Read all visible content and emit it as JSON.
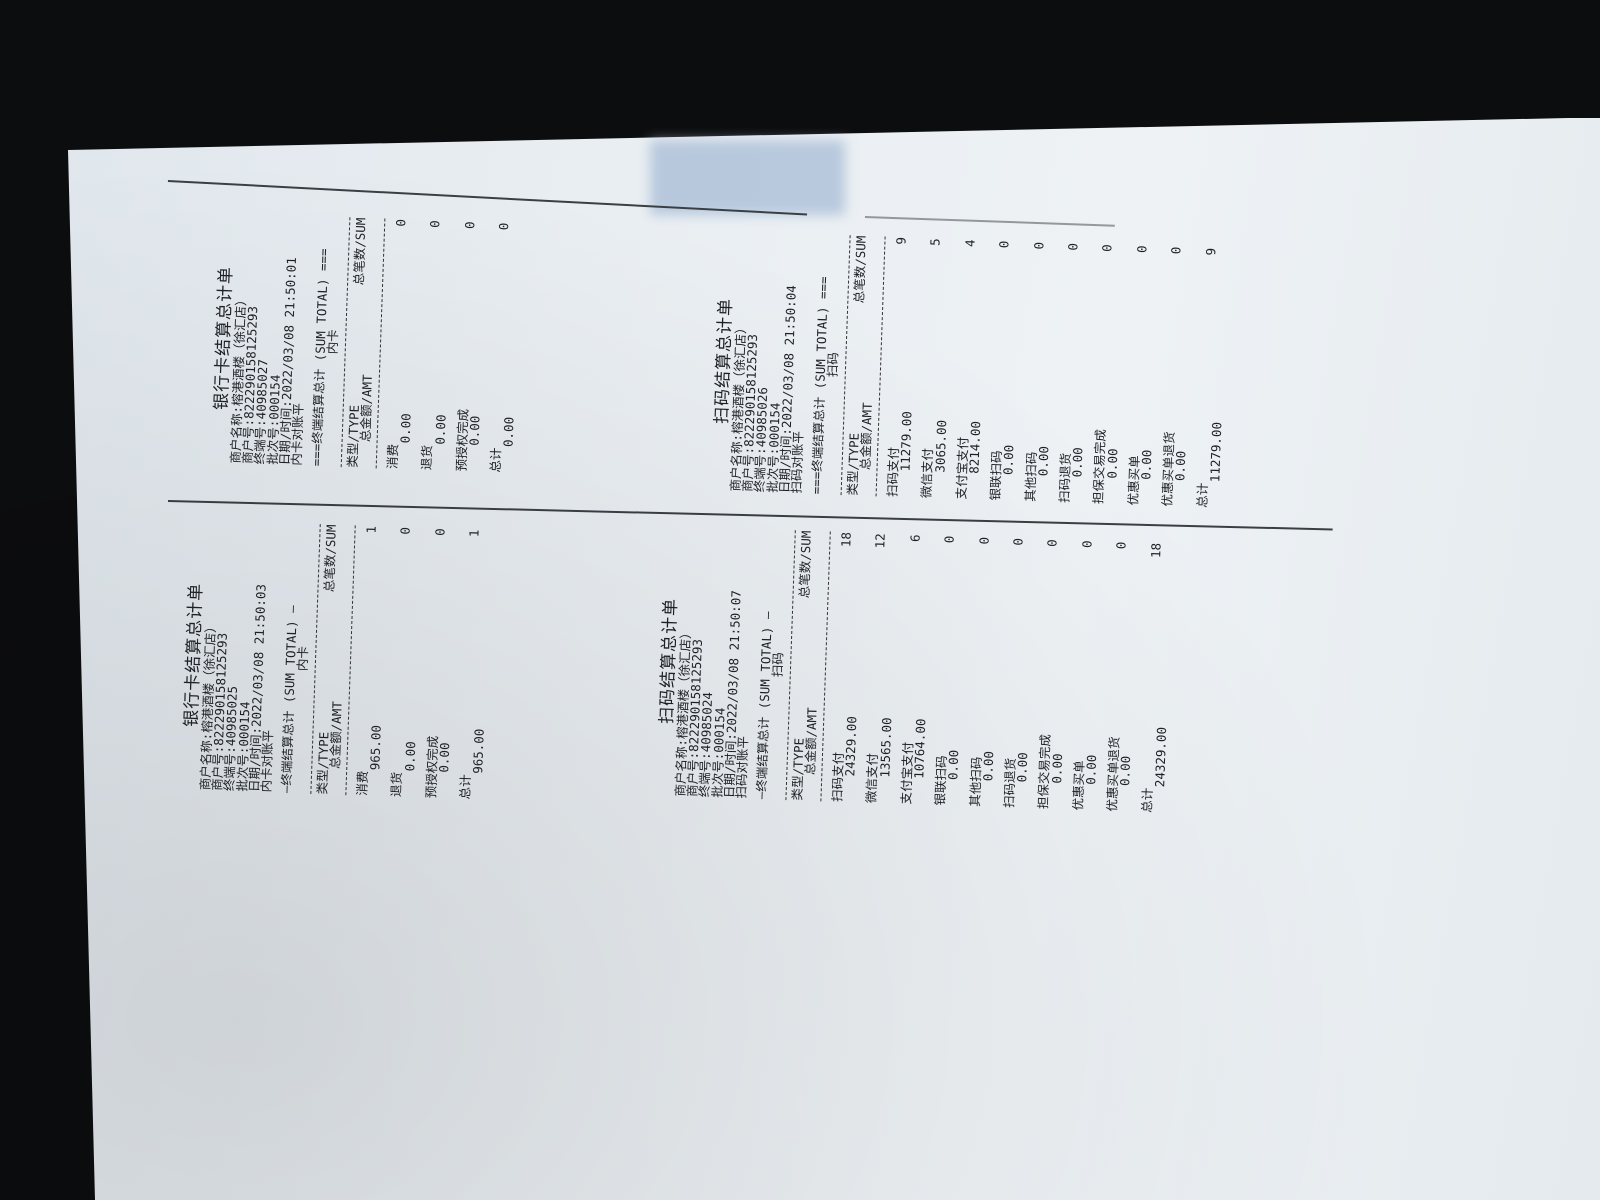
{
  "receipts": [
    {
      "title": "银行卡结算总计单",
      "merchant_name": "商户名称:榕港酒楼（徐汇店）",
      "merchant_no": "商户号:822290158125293",
      "terminal_no": "终端号:40985027",
      "batch_no": "批次号:000154",
      "datetime": "日期/时间:2022/03/08 21:50:01",
      "reconcile": "内卡对账平",
      "section_header": "===终端结算总计 (SUM TOTAL) ===",
      "section_sub": "内卡",
      "col_type": "类型/TYPE",
      "col_amt": "总金额/AMT",
      "col_sum": "总笔数/SUM",
      "items": [
        {
          "label": "消费",
          "amount": "0.00",
          "count": "0"
        },
        {
          "label": "退货",
          "amount": "0.00",
          "count": "0"
        },
        {
          "label": "预授权完成",
          "amount": "0.00",
          "count": "0"
        },
        {
          "label": "总计",
          "amount": "0.00",
          "count": "0"
        }
      ]
    },
    {
      "title": "扫码结算总计单",
      "merchant_name": "商户名称:榕港酒楼（徐汇店）",
      "merchant_no": "商户号:822290158125293",
      "terminal_no": "终端号:40985026",
      "batch_no": "批次号:000154",
      "datetime": "日期/时间:2022/03/08 21:50:04",
      "reconcile": "扫码对账平",
      "section_header": "===终端结算总计 (SUM TOTAL) ===",
      "section_sub": "扫码",
      "col_type": "类型/TYPE",
      "col_amt": "总金额/AMT",
      "col_sum": "总笔数/SUM",
      "items": [
        {
          "label": "扫码支付",
          "amount": "11279.00",
          "count": "9"
        },
        {
          "label": "微信支付",
          "amount": "3065.00",
          "count": "5"
        },
        {
          "label": "支付宝支付",
          "amount": "8214.00",
          "count": "4"
        },
        {
          "label": "银联扫码",
          "amount": "0.00",
          "count": "0"
        },
        {
          "label": "其他扫码",
          "amount": "0.00",
          "count": "0"
        },
        {
          "label": "扫码退货",
          "amount": "0.00",
          "count": "0"
        },
        {
          "label": "担保交易完成",
          "amount": "0.00",
          "count": "0"
        },
        {
          "label": "优惠买单",
          "amount": "0.00",
          "count": "0"
        },
        {
          "label": "优惠买单退货",
          "amount": "0.00",
          "count": "0"
        },
        {
          "label": "总计",
          "amount": "11279.00",
          "count": "9"
        }
      ]
    },
    {
      "title": "银行卡结算总计单",
      "merchant_name": "商户名称:榕港酒楼（徐汇店）",
      "merchant_no": "商户号:822290158125293",
      "terminal_no": "终端号:40985025",
      "batch_no": "批次号:000154",
      "datetime": "日期/时间:2022/03/08 21:50:03",
      "reconcile": "内卡对账平",
      "section_header": "—终端结算总计 (SUM TOTAL) —",
      "section_sub": "内卡",
      "col_type": "类型/TYPE",
      "col_amt": "总金额/AMT",
      "col_sum": "总笔数/SUM",
      "items": [
        {
          "label": "消费",
          "amount": "965.00",
          "count": "1"
        },
        {
          "label": "退货",
          "amount": "0.00",
          "count": "0"
        },
        {
          "label": "预授权完成",
          "amount": "0.00",
          "count": "0"
        },
        {
          "label": "总计",
          "amount": "965.00",
          "count": "1"
        }
      ]
    },
    {
      "title": "扫码结算总计单",
      "merchant_name": "商户名称:榕港酒楼（徐汇店）",
      "merchant_no": "商户号:822290158125293",
      "terminal_no": "终端号:40985024",
      "batch_no": "批次号:000154",
      "datetime": "日期/时间:2022/03/08 21:50:07",
      "reconcile": "扫码对账平",
      "section_header": "—终端结算总计 (SUM TOTAL) —",
      "section_sub": "扫码",
      "col_type": "类型/TYPE",
      "col_amt": "总金额/AMT",
      "col_sum": "总笔数/SUM",
      "items": [
        {
          "label": "扫码支付",
          "amount": "24329.00",
          "count": "18"
        },
        {
          "label": "微信支付",
          "amount": "13565.00",
          "count": "12"
        },
        {
          "label": "支付宝支付",
          "amount": "10764.00",
          "count": "6"
        },
        {
          "label": "银联扫码",
          "amount": "0.00",
          "count": "0"
        },
        {
          "label": "其他扫码",
          "amount": "0.00",
          "count": "0"
        },
        {
          "label": "扫码退货",
          "amount": "0.00",
          "count": "0"
        },
        {
          "label": "担保交易完成",
          "amount": "0.00",
          "count": "0"
        },
        {
          "label": "优惠买单",
          "amount": "0.00",
          "count": "0"
        },
        {
          "label": "优惠买单退货",
          "amount": "0.00",
          "count": "0"
        },
        {
          "label": "总计",
          "amount": "24329.00",
          "count": "18"
        }
      ]
    }
  ]
}
